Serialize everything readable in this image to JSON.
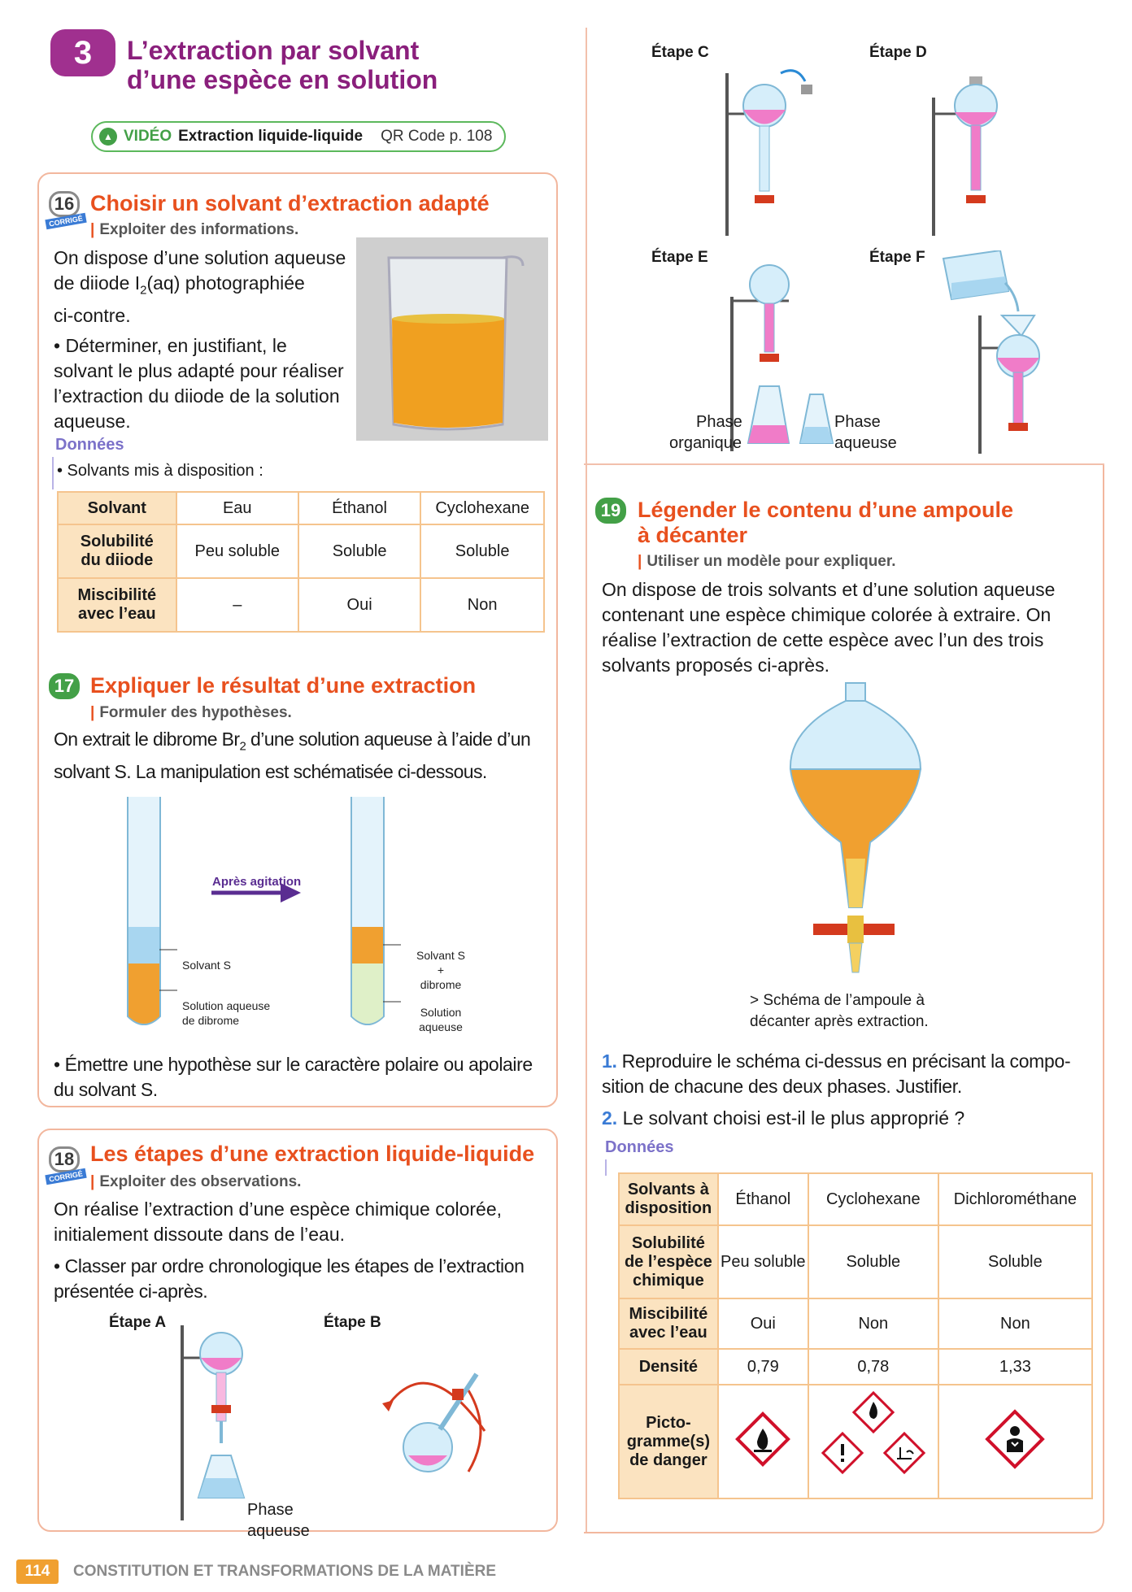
{
  "section": {
    "number": "3",
    "title_line1": "L’extraction par solvant",
    "title_line2": "d’une espèce en solution"
  },
  "video": {
    "label": "VIDÉO",
    "title": "Extraction liquide-liquide",
    "qr": "QR Code p. 108"
  },
  "ex16": {
    "number": "16",
    "corrige": "CORRIGÉ",
    "title": "Choisir un solvant d’extraction adapté",
    "skill": "Exploiter des informations.",
    "text_l1": "On dispose d’une solution aqueuse",
    "text_l2a": "de diiode I",
    "text_l2sub": "2",
    "text_l2b": "(aq) photographiée",
    "text_l3": "ci-contre.",
    "q_l1": "• Déterminer, en justifiant, le",
    "q_l2": "solvant le plus adapté pour réaliser",
    "q_l3": "l’extraction du diiode de la solution",
    "q_l4": "aqueuse.",
    "donnees": "Données",
    "solvants": "• Solvants mis à disposition :",
    "table": {
      "header": [
        "Solvant",
        "Eau",
        "Éthanol",
        "Cyclohexane"
      ],
      "row1_h1": "Solubilité",
      "row1_h2": "du diiode",
      "row1": [
        "Peu soluble",
        "Soluble",
        "Soluble"
      ],
      "row2_h1": "Miscibilité",
      "row2_h2": "avec l’eau",
      "row2": [
        "–",
        "Oui",
        "Non"
      ]
    }
  },
  "ex17": {
    "number": "17",
    "title": "Expliquer le résultat d’une extraction",
    "skill": "Formuler des hypothèses.",
    "text_l1": "On extrait le dibrome Br",
    "text_sub": "2",
    "text_l1b": " d’une solution aqueuse à l’aide d’un",
    "text_l2": "solvant S. La manipulation est schématisée ci-dessous.",
    "arrow": "Après agitation",
    "t1_top": "Solvant S",
    "t1_bot_1": "Solution aqueuse",
    "t1_bot_2": "de dibrome",
    "t2_top_1": "Solvant S",
    "t2_top_2": "+",
    "t2_top_3": "dibrome",
    "t2_bot_1": "Solution",
    "t2_bot_2": "aqueuse",
    "q_l1": "• Émettre une hypothèse sur le caractère polaire ou apolaire",
    "q_l2": "du solvant S."
  },
  "ex18": {
    "number": "18",
    "corrige": "CORRIGÉ",
    "title": "Les étapes d’une extraction liquide-liquide",
    "skill": "Exploiter des observations.",
    "text_l1": "On réalise l’extraction d’une espèce chimique colorée,",
    "text_l2": "initialement dissoute dans de l’eau.",
    "q_l1": "• Classer par ordre chronologique les étapes de l’extraction",
    "q_l2": "présentée ci-après.",
    "stepA": "Étape A",
    "stepB": "Étape B",
    "stepA_lab1": "Phase",
    "stepA_lab2": "aqueuse",
    "stepC": "Étape C",
    "stepD": "Étape D",
    "stepE": "Étape E",
    "stepF": "Étape F",
    "e_lab_org1": "Phase",
    "e_lab_org2": "organique",
    "e_lab_aq1": "Phase",
    "e_lab_aq2": "aqueuse"
  },
  "ex19": {
    "number": "19",
    "title_l1": "Légender le contenu d’une ampoule",
    "title_l2": "à décanter",
    "skill": "Utiliser un modèle pour expliquer.",
    "text_l1": "On dispose de trois solvants et d’une solution aqueuse",
    "text_l2": "contenant une espèce chimique colorée à extraire. On",
    "text_l3": "réalise l’extraction de cette espèce avec l’un des trois",
    "text_l4": "solvants proposés ci-après.",
    "caption_l1": "> Schéma de l’ampoule à",
    "caption_l2": "décanter après extraction.",
    "q1_num": "1.",
    "q1_l1": " Reproduire le schéma ci-dessus en précisant la compo-",
    "q1_l2": "sition de chacune des deux phases. Justifier.",
    "q2_num": "2.",
    "q2": " Le solvant choisi est-il le plus approprié ?",
    "donnees": "Données",
    "table": {
      "h_solv_1": "Solvants à",
      "h_solv_2": "disposition",
      "cols": [
        "Éthanol",
        "Cyclohexane",
        "Dichlorométhane"
      ],
      "h_sol_1": "Solubilité",
      "h_sol_2": "de l’espèce",
      "h_sol_3": "chimique",
      "sol": [
        "Peu soluble",
        "Soluble",
        "Soluble"
      ],
      "h_mis_1": "Miscibilité",
      "h_mis_2": "avec l’eau",
      "mis": [
        "Oui",
        "Non",
        "Non"
      ],
      "h_dens": "Densité",
      "dens": [
        "0,79",
        "0,78",
        "1,33"
      ],
      "h_pic_1": "Picto-",
      "h_pic_2": "gramme(s)",
      "h_pic_3": "de danger"
    }
  },
  "footer": {
    "page": "114",
    "title": "CONSTITUTION ET TRANSFORMATIONS DE LA MATIÈRE"
  },
  "colors": {
    "accent_orange": "#e8501e",
    "section_purple": "#a0308f",
    "green": "#43a047",
    "table_head": "#fbe3c0"
  }
}
